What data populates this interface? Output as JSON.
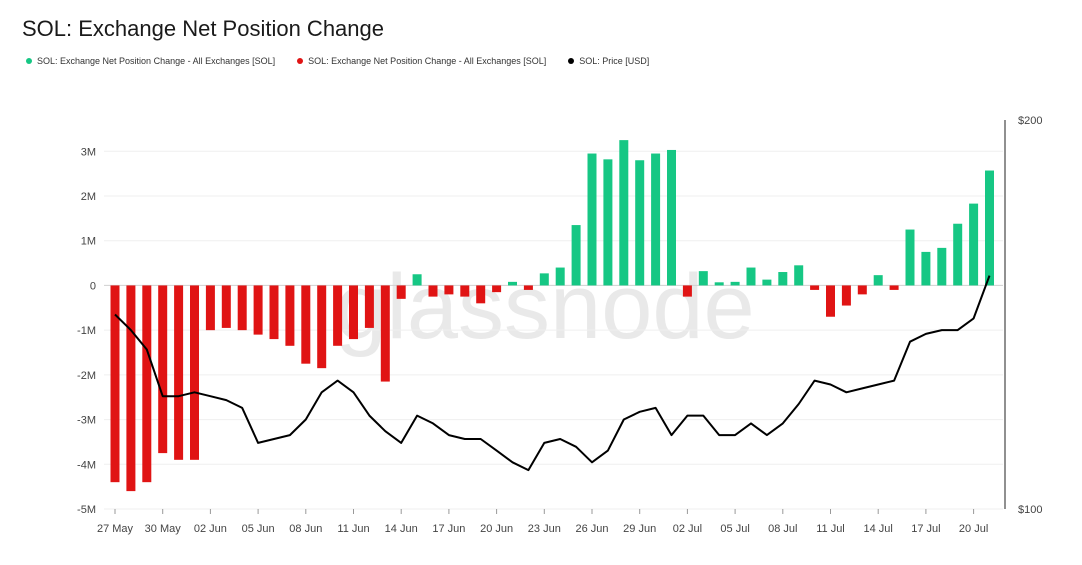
{
  "title": "SOL: Exchange Net Position Change",
  "watermark": "glassnode",
  "legend": [
    {
      "label": "SOL: Exchange Net Position Change - All Exchanges [SOL]",
      "color": "#16c784"
    },
    {
      "label": "SOL: Exchange Net Position Change - All Exchanges [SOL]",
      "color": "#e01414"
    },
    {
      "label": "SOL: Price [USD]",
      "color": "#000000"
    }
  ],
  "chart_data": {
    "type": "bar",
    "x_ticks": [
      "27 May",
      "30 May",
      "02 Jun",
      "05 Jun",
      "08 Jun",
      "11 Jun",
      "14 Jun",
      "17 Jun",
      "20 Jun",
      "23 Jun",
      "26 Jun",
      "29 Jun",
      "02 Jul",
      "05 Jul",
      "08 Jul",
      "11 Jul",
      "14 Jul",
      "17 Jul",
      "20 Jul"
    ],
    "y_ticks": [
      {
        "value": 3000000,
        "label": "3M"
      },
      {
        "value": 2000000,
        "label": "2M"
      },
      {
        "value": 1000000,
        "label": "1M"
      },
      {
        "value": 0,
        "label": "0"
      },
      {
        "value": -1000000,
        "label": "-1M"
      },
      {
        "value": -2000000,
        "label": "-2M"
      },
      {
        "value": -3000000,
        "label": "-3M"
      },
      {
        "value": -4000000,
        "label": "-4M"
      },
      {
        "value": -5000000,
        "label": "-5M"
      }
    ],
    "ylim": [
      -5000000,
      3700000
    ],
    "y2_ticks": [
      {
        "value": 200,
        "label": "$200"
      },
      {
        "value": 100,
        "label": "$100"
      }
    ],
    "y2lim": [
      100,
      200
    ],
    "positive_color": "#16c784",
    "negative_color": "#e01414",
    "price_color": "#000000",
    "grid": true,
    "dates": [
      "27 May",
      "28 May",
      "29 May",
      "30 May",
      "31 May",
      "01 Jun",
      "02 Jun",
      "03 Jun",
      "04 Jun",
      "05 Jun",
      "06 Jun",
      "07 Jun",
      "08 Jun",
      "09 Jun",
      "10 Jun",
      "11 Jun",
      "12 Jun",
      "13 Jun",
      "14 Jun",
      "15 Jun",
      "16 Jun",
      "17 Jun",
      "18 Jun",
      "19 Jun",
      "20 Jun",
      "21 Jun",
      "22 Jun",
      "23 Jun",
      "24 Jun",
      "25 Jun",
      "26 Jun",
      "27 Jun",
      "28 Jun",
      "29 Jun",
      "30 Jun",
      "01 Jul",
      "02 Jul",
      "03 Jul",
      "04 Jul",
      "05 Jul",
      "06 Jul",
      "07 Jul",
      "08 Jul",
      "09 Jul",
      "10 Jul",
      "11 Jul",
      "12 Jul",
      "13 Jul",
      "14 Jul",
      "15 Jul",
      "16 Jul",
      "17 Jul",
      "18 Jul",
      "19 Jul",
      "20 Jul",
      "21 Jul"
    ],
    "net_position_change": [
      -4400000,
      -4600000,
      -4400000,
      -3750000,
      -3900000,
      -3900000,
      -1000000,
      -950000,
      -1000000,
      -1100000,
      -1200000,
      -1350000,
      -1750000,
      -1850000,
      -1350000,
      -1200000,
      -950000,
      -2150000,
      -300000,
      250000,
      -250000,
      -200000,
      -250000,
      -400000,
      -150000,
      80000,
      -100000,
      270000,
      400000,
      1350000,
      2950000,
      2820000,
      3250000,
      2800000,
      2950000,
      3030000,
      -250000,
      320000,
      70000,
      80000,
      400000,
      130000,
      300000,
      450000,
      -100000,
      -700000,
      -450000,
      -200000,
      230000,
      -100000,
      1250000,
      750000,
      840000,
      1380000,
      1830000,
      2570000
    ],
    "price_usd": [
      150,
      146,
      141,
      129,
      129,
      130,
      129,
      128,
      126,
      117,
      118,
      119,
      123,
      130,
      133,
      130,
      124,
      120,
      117,
      124,
      122,
      119,
      118,
      118,
      115,
      112,
      110,
      117,
      118,
      116,
      112,
      115,
      123,
      125,
      126,
      119,
      124,
      124,
      119,
      119,
      122,
      119,
      122,
      127,
      133,
      132,
      130,
      131,
      132,
      133,
      143,
      145,
      146,
      146,
      149,
      160
    ]
  }
}
